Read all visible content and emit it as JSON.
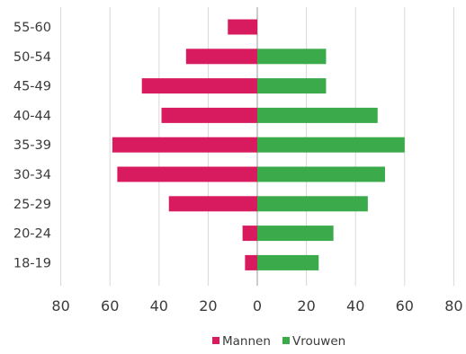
{
  "chart_data": {
    "type": "bar",
    "orientation": "horizontal",
    "categories": [
      "55-60",
      "50-54",
      "45-49",
      "40-44",
      "35-39",
      "30-34",
      "25-29",
      "20-24",
      "18-19"
    ],
    "series": [
      {
        "name": "Mannen",
        "color": "#d81b5e",
        "values": [
          12,
          29,
          47,
          39,
          59,
          57,
          36,
          6,
          5
        ]
      },
      {
        "name": "Vrouwen",
        "color": "#3aaa4a",
        "values": [
          0,
          28,
          28,
          49,
          60,
          52,
          45,
          31,
          25
        ]
      }
    ],
    "x_ticks": [
      "80",
      "60",
      "40",
      "20",
      "0",
      "20",
      "40",
      "60",
      "80"
    ],
    "xlim": [
      -80,
      80
    ],
    "legend_position": "bottom",
    "grid": true
  }
}
